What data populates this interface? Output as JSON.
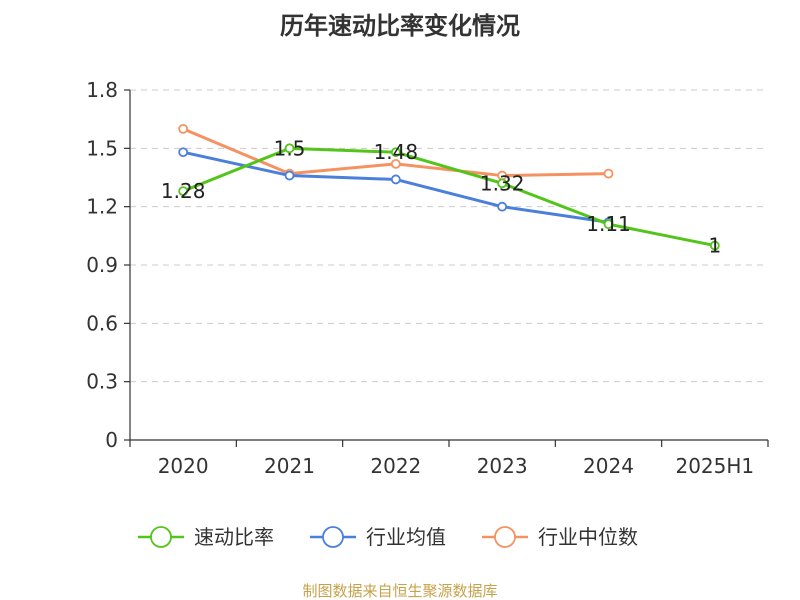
{
  "chart_data": {
    "type": "line",
    "title": "历年速动比率变化情况",
    "categories": [
      "2020",
      "2021",
      "2022",
      "2023",
      "2024",
      "2025H1"
    ],
    "ylim": [
      0,
      1.8
    ],
    "yticks": [
      "0",
      "0.3",
      "0.6",
      "0.9",
      "1.2",
      "1.5",
      "1.8"
    ],
    "grid": true,
    "legend_position": "bottom",
    "series": [
      {
        "name": "速动比率",
        "color": "#52c41a",
        "values": [
          1.28,
          1.5,
          1.48,
          1.32,
          1.11,
          1.0
        ],
        "labels": [
          "1.28",
          "1.5",
          "1.48",
          "1.32",
          "1.11",
          "1"
        ]
      },
      {
        "name": "行业均值",
        "color": "#4a7fdc",
        "values": [
          1.48,
          1.36,
          1.34,
          1.2,
          1.12,
          null
        ]
      },
      {
        "name": "行业中位数",
        "color": "#f59262",
        "values": [
          1.6,
          1.37,
          1.42,
          1.36,
          1.37,
          null
        ]
      }
    ]
  },
  "source_text": "制图数据来自恒生聚源数据库",
  "source_color": "#c8a24a"
}
